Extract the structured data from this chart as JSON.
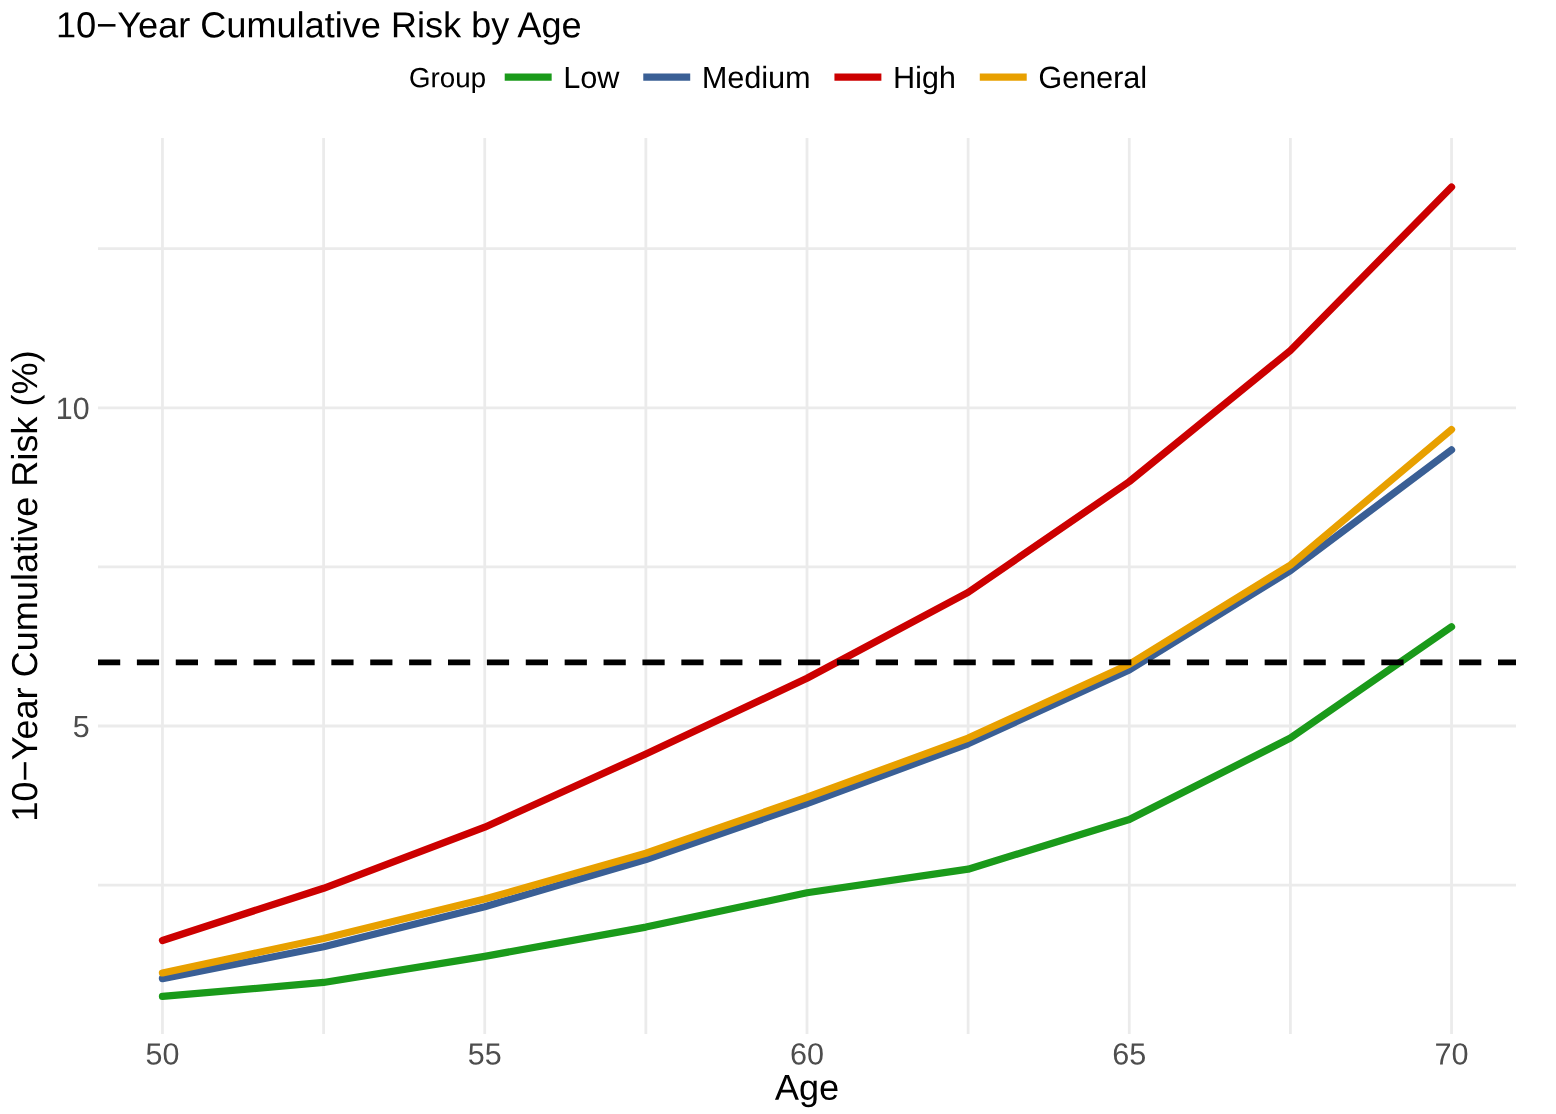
{
  "chart_data": {
    "type": "line",
    "title": "10−Year Cumulative Risk by Age",
    "xlabel": "Age",
    "ylabel": "10−Year Cumulative Risk (%)",
    "legend_title": "Group",
    "legend": "top",
    "x": [
      50,
      52.5,
      55,
      57.5,
      60,
      62.5,
      65,
      67.5,
      70
    ],
    "series": [
      {
        "name": "Low",
        "color": "#1a9a1a",
        "values": [
          0.75,
          0.97,
          1.38,
          1.84,
          2.38,
          2.75,
          3.53,
          4.81,
          6.56
        ]
      },
      {
        "name": "Medium",
        "color": "#3a5f95",
        "values": [
          1.03,
          1.53,
          2.16,
          2.9,
          3.78,
          4.72,
          5.88,
          7.44,
          9.34
        ]
      },
      {
        "name": "High",
        "color": "#cc0000",
        "values": [
          1.63,
          2.45,
          3.41,
          4.56,
          5.75,
          7.1,
          8.84,
          10.9,
          13.47
        ]
      },
      {
        "name": "General",
        "color": "#e8a000",
        "values": [
          1.12,
          1.66,
          2.28,
          3.0,
          3.88,
          4.81,
          5.97,
          7.53,
          9.66
        ]
      }
    ],
    "xlim": [
      49,
      71
    ],
    "ylim": [
      0.16,
      14.24
    ],
    "xticks": [
      50,
      {
        "value": 52.5,
        "label": null
      },
      55,
      {
        "value": 57.5,
        "label": null
      },
      60,
      {
        "value": 62.5,
        "label": null
      },
      65,
      {
        "value": 67.5,
        "label": null
      },
      70
    ],
    "yticks": [
      {
        "value": 2.5,
        "label": null
      },
      5,
      {
        "value": 7.5,
        "label": null
      },
      10,
      {
        "value": 12.5,
        "label": null
      }
    ],
    "grid": true,
    "ref_lines": [
      {
        "axis": "y",
        "value": 6,
        "color": "#000000",
        "line_style": "dashed"
      }
    ]
  }
}
